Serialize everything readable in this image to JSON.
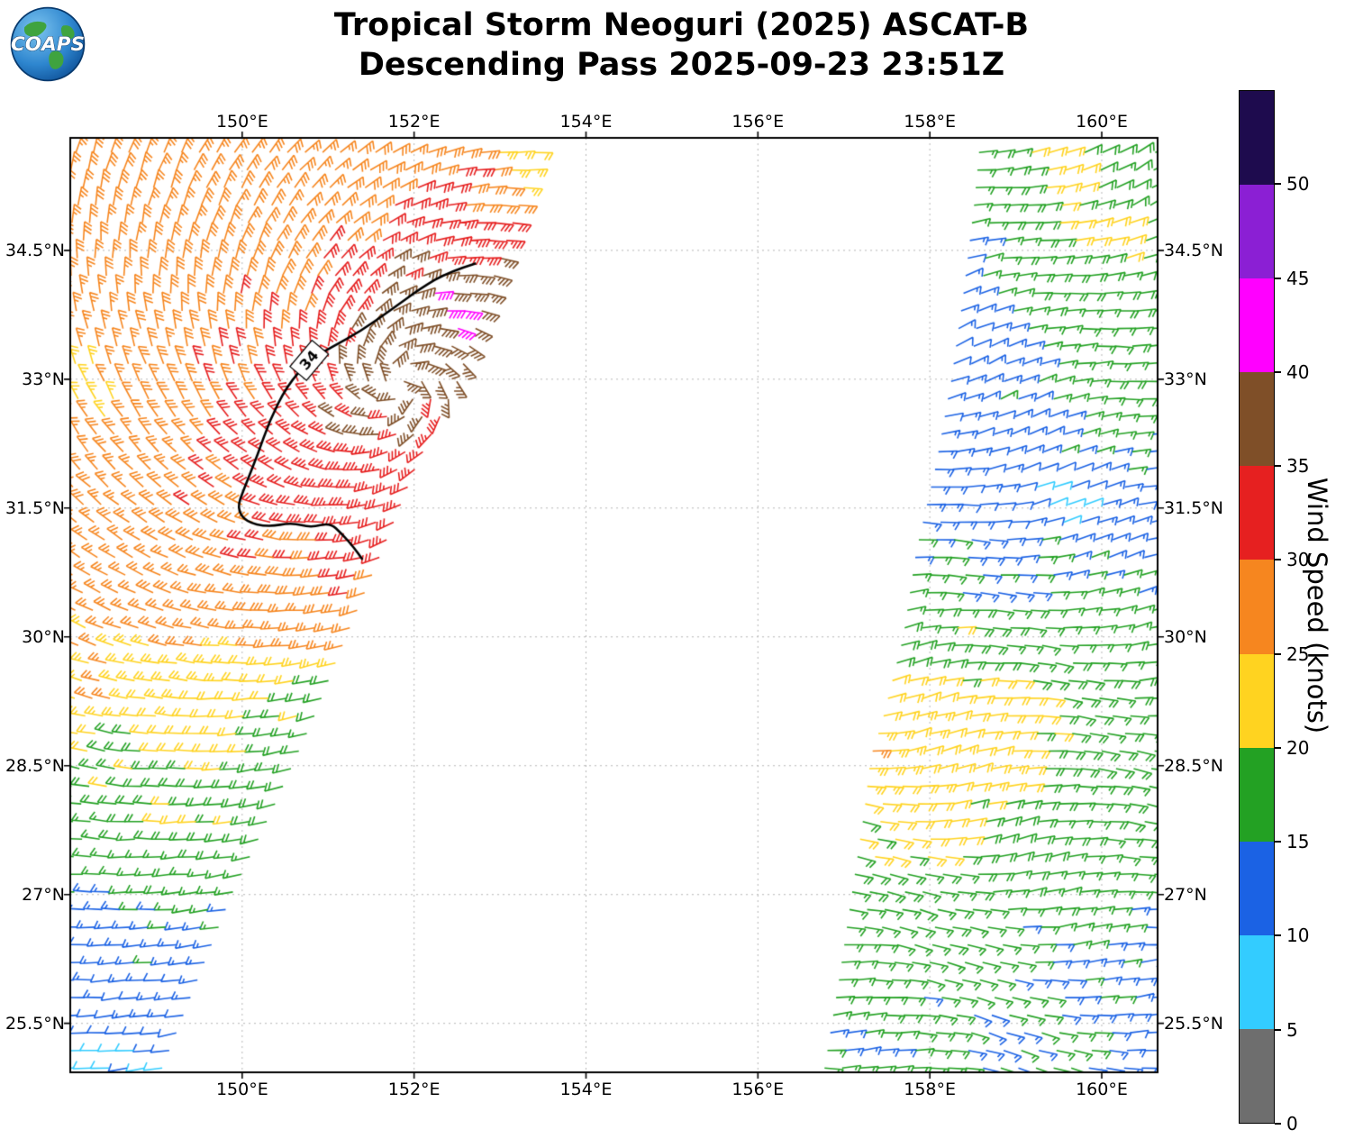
{
  "header": {
    "title_line1": "Tropical Storm Neoguri (2025) ASCAT-B",
    "title_line2": "Descending Pass 2025-09-23 23:51Z",
    "logo_text": "COAPS"
  },
  "colorbar": {
    "label": "Wind Speed (knots)",
    "max_value": 55,
    "tick_values": [
      0,
      5,
      10,
      15,
      20,
      25,
      30,
      35,
      40,
      45,
      50
    ],
    "segment_colors_bottom_to_top": [
      "#6e6e6e",
      "#33ccff",
      "#1b62e4",
      "#23a123",
      "#ffd320",
      "#f6861f",
      "#e62020",
      "#7f4f28",
      "#ff00ff",
      "#8b1fd4",
      "#1e0b4e"
    ]
  },
  "chart_data": {
    "type": "scatter",
    "subtype": "wind-barb-map",
    "title": "Tropical Storm Neoguri (2025) ASCAT-B / Descending Pass 2025-09-23 23:51Z",
    "units": "knots",
    "x_axis": {
      "ticks": [
        150,
        152,
        154,
        156,
        158,
        160
      ],
      "tick_labels": [
        "150°E",
        "152°E",
        "154°E",
        "156°E",
        "158°E",
        "160°E"
      ],
      "range": [
        148.0,
        160.65
      ]
    },
    "y_axis": {
      "ticks": [
        34.5,
        33,
        31.5,
        30,
        28.5,
        27,
        25.5
      ],
      "tick_labels": [
        "34.5°N",
        "33°N",
        "31.5°N",
        "30°N",
        "28.5°N",
        "27°N",
        "25.5°N"
      ],
      "range": [
        24.93,
        35.81
      ]
    },
    "grid": {
      "show": true,
      "style": "dotted",
      "color": "#b5b5b5"
    },
    "wind_speed_bins": [
      {
        "min": 0,
        "max": 5,
        "color": "#6e6e6e"
      },
      {
        "min": 5,
        "max": 10,
        "color": "#33ccff"
      },
      {
        "min": 10,
        "max": 15,
        "color": "#1b62e4"
      },
      {
        "min": 15,
        "max": 20,
        "color": "#23a123"
      },
      {
        "min": 20,
        "max": 25,
        "color": "#ffd320"
      },
      {
        "min": 25,
        "max": 30,
        "color": "#f6861f"
      },
      {
        "min": 30,
        "max": 35,
        "color": "#e62020"
      },
      {
        "min": 35,
        "max": 40,
        "color": "#7f4f28"
      },
      {
        "min": 40,
        "max": 45,
        "color": "#ff00ff"
      },
      {
        "min": 45,
        "max": 50,
        "color": "#8b1fd4"
      },
      {
        "min": 50,
        "max": 60,
        "color": "#1e0b4e"
      }
    ],
    "barb_grid_spacing_deg": 0.205,
    "contours": [
      {
        "value": 34,
        "label": "34",
        "label_pos": [
          150.78,
          33.22
        ],
        "label_rotation_deg": -50,
        "path": [
          [
            152.72,
            34.35
          ],
          [
            152.4,
            34.25
          ],
          [
            152.08,
            34.06
          ],
          [
            151.72,
            33.8
          ],
          [
            151.38,
            33.56
          ],
          [
            151.05,
            33.38
          ],
          [
            150.78,
            33.22
          ],
          [
            150.52,
            32.92
          ],
          [
            150.32,
            32.52
          ],
          [
            150.18,
            32.12
          ],
          [
            150.02,
            31.72
          ],
          [
            149.94,
            31.5
          ],
          [
            150.04,
            31.34
          ],
          [
            150.3,
            31.28
          ],
          [
            150.58,
            31.33
          ],
          [
            150.8,
            31.27
          ],
          [
            151.02,
            31.33
          ],
          [
            151.16,
            31.2
          ],
          [
            151.3,
            31.04
          ],
          [
            151.4,
            30.9
          ]
        ]
      }
    ],
    "swaths": [
      {
        "name": "left-swath",
        "anchor": "right",
        "left_edge": [
          [
            24.9,
            147.8
          ],
          [
            35.85,
            147.8
          ]
        ],
        "right_edge": [
          [
            24.9,
            149.13
          ],
          [
            26.0,
            149.57
          ],
          [
            27.0,
            149.97
          ],
          [
            28.0,
            150.45
          ],
          [
            29.0,
            150.9
          ],
          [
            30.0,
            151.3
          ],
          [
            31.0,
            151.72
          ],
          [
            32.0,
            152.12
          ],
          [
            33.0,
            152.6
          ],
          [
            34.0,
            152.95
          ],
          [
            35.0,
            153.3
          ],
          [
            35.85,
            153.55
          ]
        ],
        "flow": {
          "type": "cyclonic",
          "center": [
            151.85,
            32.95
          ],
          "inflow_deg": 25
        },
        "samples": [
          [
            152.3,
            33.9,
            41
          ],
          [
            152.42,
            33.7,
            41
          ],
          [
            152.1,
            33.8,
            38
          ],
          [
            152.6,
            34.1,
            36
          ],
          [
            152.0,
            33.5,
            37
          ],
          [
            151.6,
            33.0,
            37
          ],
          [
            151.2,
            32.4,
            36
          ],
          [
            150.9,
            31.8,
            34.5
          ],
          [
            151.5,
            31.4,
            33
          ],
          [
            151.9,
            34.2,
            36
          ],
          [
            152.6,
            34.4,
            34.5
          ],
          [
            152.2,
            34.6,
            32
          ],
          [
            152.75,
            35.15,
            30.5
          ],
          [
            153.3,
            35.5,
            23
          ],
          [
            151.8,
            35.5,
            28
          ],
          [
            150.8,
            35.4,
            27
          ],
          [
            151.3,
            34.6,
            29
          ],
          [
            150.5,
            34.2,
            28
          ],
          [
            149.5,
            35.1,
            27
          ],
          [
            148.4,
            34.6,
            27
          ],
          [
            149.2,
            33.8,
            28
          ],
          [
            150.0,
            33.2,
            29
          ],
          [
            148.2,
            32.9,
            24
          ],
          [
            150.3,
            32.6,
            31
          ],
          [
            149.9,
            32.2,
            31
          ],
          [
            149.3,
            32.3,
            28
          ],
          [
            148.3,
            32.0,
            27
          ],
          [
            150.5,
            31.6,
            32
          ],
          [
            150.0,
            31.2,
            30
          ],
          [
            151.3,
            30.7,
            31
          ],
          [
            151.1,
            30.3,
            28.5
          ],
          [
            150.7,
            30.9,
            30
          ],
          [
            148.6,
            30.7,
            26
          ],
          [
            149.5,
            30.6,
            27
          ],
          [
            150.3,
            30.2,
            27
          ],
          [
            151.0,
            30.0,
            25
          ],
          [
            148.2,
            29.6,
            25.5
          ],
          [
            149.2,
            29.4,
            23
          ],
          [
            150.2,
            29.4,
            21
          ],
          [
            150.9,
            29.3,
            18
          ],
          [
            150.5,
            28.8,
            18
          ],
          [
            149.6,
            28.8,
            21
          ],
          [
            148.5,
            28.5,
            19
          ],
          [
            148.1,
            27.9,
            18
          ],
          [
            149.2,
            28.0,
            20
          ],
          [
            150.0,
            27.8,
            19
          ],
          [
            150.3,
            27.3,
            17
          ],
          [
            149.4,
            27.2,
            17
          ],
          [
            148.4,
            27.0,
            15
          ],
          [
            148.1,
            26.3,
            13
          ],
          [
            148.9,
            26.4,
            14
          ],
          [
            149.6,
            26.6,
            15
          ],
          [
            148.4,
            25.7,
            12
          ],
          [
            149.2,
            25.7,
            13
          ],
          [
            148.15,
            25.1,
            8
          ],
          [
            148.8,
            25.0,
            9
          ],
          [
            149.3,
            25.2,
            11
          ]
        ]
      },
      {
        "name": "right-swath",
        "anchor": "left",
        "left_edge": [
          [
            24.9,
            156.67
          ],
          [
            26.0,
            156.85
          ],
          [
            27.0,
            157.0
          ],
          [
            28.0,
            157.15
          ],
          [
            28.6,
            157.22
          ],
          [
            29.0,
            157.35
          ],
          [
            30.0,
            157.6
          ],
          [
            31.0,
            157.75
          ],
          [
            32.0,
            157.98
          ],
          [
            33.0,
            158.16
          ],
          [
            34.0,
            158.3
          ],
          [
            35.0,
            158.42
          ],
          [
            35.85,
            158.5
          ]
        ],
        "right_edge": [
          [
            24.9,
            160.8
          ],
          [
            35.85,
            160.8
          ]
        ],
        "flow": {
          "type": "uniform",
          "base_bearing": 85,
          "lat_ref": 30,
          "lat_coef": -2.2,
          "wobble_deg": 12
        },
        "samples": [
          [
            158.6,
            35.6,
            17
          ],
          [
            159.4,
            35.4,
            21
          ],
          [
            160.2,
            35.2,
            18
          ],
          [
            160.5,
            34.6,
            20
          ],
          [
            158.35,
            34.4,
            13
          ],
          [
            159.0,
            34.3,
            17
          ],
          [
            159.8,
            34.6,
            21
          ],
          [
            160.4,
            33.9,
            18
          ],
          [
            158.25,
            33.4,
            12
          ],
          [
            158.9,
            33.1,
            14
          ],
          [
            159.6,
            33.3,
            17
          ],
          [
            160.4,
            32.9,
            17
          ],
          [
            158.1,
            32.4,
            13
          ],
          [
            158.8,
            32.2,
            12
          ],
          [
            159.7,
            32.3,
            16
          ],
          [
            160.5,
            32.0,
            15
          ],
          [
            157.95,
            31.6,
            14
          ],
          [
            158.7,
            31.5,
            12
          ],
          [
            159.45,
            31.6,
            8
          ],
          [
            160.3,
            31.35,
            13
          ],
          [
            157.8,
            30.9,
            16
          ],
          [
            158.6,
            30.8,
            14
          ],
          [
            159.4,
            30.9,
            15
          ],
          [
            160.2,
            30.7,
            16
          ],
          [
            157.6,
            30.1,
            18
          ],
          [
            158.4,
            30.0,
            19
          ],
          [
            159.2,
            30.1,
            17
          ],
          [
            160.1,
            29.9,
            17
          ],
          [
            157.4,
            29.3,
            20
          ],
          [
            158.2,
            29.2,
            22
          ],
          [
            159.1,
            29.2,
            21
          ],
          [
            160.0,
            29.0,
            18
          ],
          [
            157.25,
            28.6,
            26
          ],
          [
            157.9,
            28.5,
            22
          ],
          [
            158.8,
            28.4,
            22
          ],
          [
            159.8,
            28.2,
            18
          ],
          [
            157.15,
            27.8,
            21
          ],
          [
            158.0,
            27.7,
            21
          ],
          [
            159.0,
            27.6,
            18
          ],
          [
            160.1,
            27.5,
            17
          ],
          [
            157.0,
            27.0,
            17
          ],
          [
            157.9,
            26.9,
            17
          ],
          [
            158.9,
            26.7,
            16
          ],
          [
            160.0,
            26.5,
            16
          ],
          [
            156.85,
            26.2,
            16
          ],
          [
            157.8,
            26.0,
            16
          ],
          [
            158.8,
            25.8,
            15
          ],
          [
            159.9,
            25.7,
            15
          ],
          [
            156.75,
            25.3,
            15
          ],
          [
            157.7,
            25.1,
            16
          ],
          [
            158.7,
            25.0,
            15
          ],
          [
            159.6,
            25.1,
            15
          ],
          [
            160.4,
            25.4,
            12
          ],
          [
            160.55,
            26.3,
            13
          ]
        ]
      }
    ]
  }
}
